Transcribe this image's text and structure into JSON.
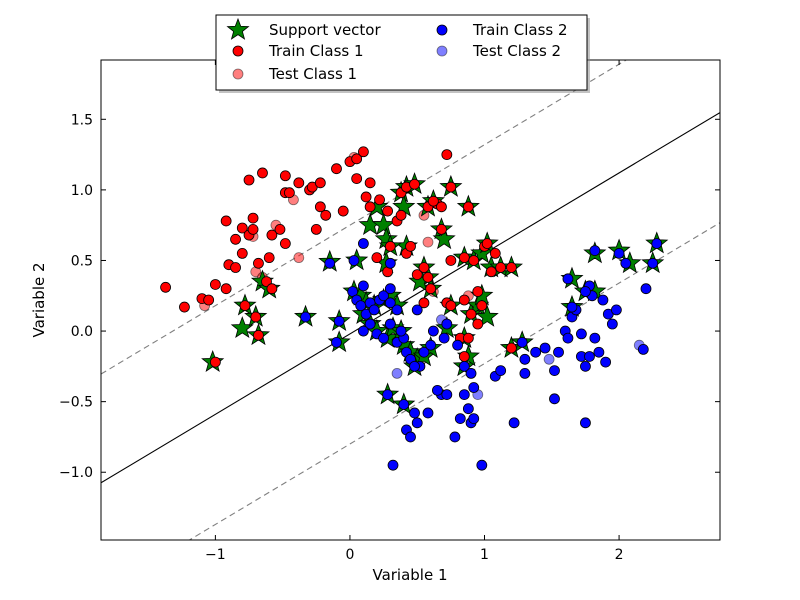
{
  "chart_data": {
    "type": "scatter",
    "xlabel": "Variable 1",
    "ylabel": "Variable 2",
    "xlim": [
      -1.85,
      2.75
    ],
    "ylim": [
      -1.48,
      1.92
    ],
    "xticks": [
      -1,
      0,
      1,
      2
    ],
    "yticks": [
      -1.0,
      -0.5,
      0.0,
      0.5,
      1.0,
      1.5
    ],
    "xtick_labels": [
      "−1",
      "0",
      "1",
      "2"
    ],
    "ytick_labels": [
      "−1.0",
      "−0.5",
      "0.0",
      "0.5",
      "1.0",
      "1.5"
    ],
    "grid": false,
    "legend_position": "top-center",
    "legend_entries": [
      {
        "key": "sv",
        "label": "Support vector"
      },
      {
        "key": "train1",
        "label": "Train Class 1"
      },
      {
        "key": "test1",
        "label": "Test Class 1"
      },
      {
        "key": "train2",
        "label": "Train Class 2"
      },
      {
        "key": "test2",
        "label": "Test Class 2"
      }
    ],
    "colors": {
      "train1": "#ff0000",
      "test1": "#ff0000",
      "train2": "#0000ff",
      "test2": "#0000ff",
      "support_vector": "#008000",
      "decision_boundary": "#000000",
      "margin": "#808080"
    },
    "decision_boundary": {
      "slope": 0.57,
      "intercept": -0.02
    },
    "margins": [
      {
        "slope": 0.57,
        "intercept": 0.75
      },
      {
        "slope": 0.57,
        "intercept": -0.8
      }
    ],
    "series": [
      {
        "name": "Support vector",
        "type": "support_vector",
        "points": [
          [
            -1.02,
            -0.22
          ],
          [
            -0.78,
            0.18
          ],
          [
            -0.8,
            0.02
          ],
          [
            -0.7,
            0.1
          ],
          [
            -0.68,
            -0.03
          ],
          [
            -0.65,
            0.35
          ],
          [
            -0.6,
            0.3
          ],
          [
            -0.33,
            0.1
          ],
          [
            -0.15,
            0.49
          ],
          [
            -0.08,
            -0.08
          ],
          [
            -0.08,
            0.07
          ],
          [
            0.05,
            0.5
          ],
          [
            0.15,
            0.75
          ],
          [
            0.2,
            0.88
          ],
          [
            0.25,
            0.75
          ],
          [
            0.27,
            0.65
          ],
          [
            0.27,
            0.48
          ],
          [
            0.38,
            0.98
          ],
          [
            0.42,
            1.02
          ],
          [
            0.48,
            1.04
          ],
          [
            0.4,
            0.88
          ],
          [
            0.42,
            0.6
          ],
          [
            0.58,
            0.88
          ],
          [
            0.62,
            0.92
          ],
          [
            0.68,
            0.72
          ],
          [
            0.7,
            0.65
          ],
          [
            0.75,
            1.02
          ],
          [
            0.88,
            0.88
          ],
          [
            0.55,
            0.45
          ],
          [
            0.58,
            0.38
          ],
          [
            0.6,
            0.3
          ],
          [
            0.75,
            0.18
          ],
          [
            0.85,
            0.52
          ],
          [
            0.92,
            0.5
          ],
          [
            0.98,
            0.55
          ],
          [
            1.02,
            0.62
          ],
          [
            1.05,
            0.45
          ],
          [
            1.12,
            0.45
          ],
          [
            1.2,
            0.45
          ],
          [
            0.03,
            0.28
          ],
          [
            0.08,
            0.25
          ],
          [
            0.12,
            0.2
          ],
          [
            0.18,
            0.18
          ],
          [
            0.25,
            0.22
          ],
          [
            0.3,
            0.25
          ],
          [
            0.35,
            0.18
          ],
          [
            0.1,
            0.12
          ],
          [
            0.15,
            0.05
          ],
          [
            0.2,
            0.0
          ],
          [
            0.28,
            -0.05
          ],
          [
            0.32,
            0.02
          ],
          [
            0.38,
            0.0
          ],
          [
            0.4,
            -0.1
          ],
          [
            0.45,
            -0.15
          ],
          [
            0.5,
            -0.2
          ],
          [
            0.55,
            -0.18
          ],
          [
            0.6,
            -0.12
          ],
          [
            0.85,
            -0.25
          ],
          [
            0.88,
            -0.18
          ],
          [
            0.85,
            -0.05
          ],
          [
            0.9,
            0.12
          ],
          [
            0.95,
            0.18
          ],
          [
            0.98,
            0.25
          ],
          [
            1.02,
            0.1
          ],
          [
            0.72,
            0.02
          ],
          [
            0.28,
            -0.45
          ],
          [
            0.4,
            -0.52
          ],
          [
            0.48,
            -0.25
          ],
          [
            1.2,
            -0.12
          ],
          [
            1.28,
            -0.08
          ],
          [
            1.65,
            0.37
          ],
          [
            1.65,
            0.17
          ],
          [
            1.75,
            0.28
          ],
          [
            1.82,
            0.55
          ],
          [
            1.82,
            0.28
          ],
          [
            2.0,
            0.57
          ],
          [
            2.08,
            0.48
          ],
          [
            2.25,
            0.48
          ],
          [
            2.28,
            0.62
          ],
          [
            0.3,
            0.6
          ],
          [
            0.52,
            0.35
          ]
        ]
      },
      {
        "name": "Train Class 1",
        "type": "train1",
        "points": [
          [
            -1.37,
            0.31
          ],
          [
            -1.23,
            0.17
          ],
          [
            -1.1,
            0.23
          ],
          [
            -1.05,
            0.22
          ],
          [
            -1.0,
            0.33
          ],
          [
            -0.92,
            0.3
          ],
          [
            -0.9,
            0.47
          ],
          [
            -0.92,
            0.78
          ],
          [
            -0.85,
            0.65
          ],
          [
            -0.85,
            0.45
          ],
          [
            -0.8,
            0.73
          ],
          [
            -0.8,
            0.55
          ],
          [
            -0.75,
            0.68
          ],
          [
            -0.72,
            0.72
          ],
          [
            -0.72,
            0.8
          ],
          [
            -0.75,
            1.07
          ],
          [
            -0.65,
            1.12
          ],
          [
            -0.68,
            0.48
          ],
          [
            -0.6,
            0.52
          ],
          [
            -0.58,
            0.68
          ],
          [
            -0.52,
            0.72
          ],
          [
            -0.48,
            0.62
          ],
          [
            -0.48,
            0.98
          ],
          [
            -0.45,
            0.98
          ],
          [
            -0.48,
            1.1
          ],
          [
            -0.38,
            1.05
          ],
          [
            -0.3,
            1.0
          ],
          [
            -0.28,
            1.02
          ],
          [
            -0.22,
            0.88
          ],
          [
            -0.18,
            0.82
          ],
          [
            -0.22,
            1.05
          ],
          [
            -0.1,
            1.15
          ],
          [
            -0.05,
            0.85
          ],
          [
            -0.25,
            0.72
          ],
          [
            0.0,
            1.2
          ],
          [
            0.05,
            1.22
          ],
          [
            0.1,
            1.27
          ],
          [
            0.05,
            1.08
          ],
          [
            0.15,
            1.05
          ],
          [
            0.12,
            0.95
          ],
          [
            0.22,
            0.93
          ],
          [
            0.28,
            0.85
          ],
          [
            0.35,
            0.78
          ],
          [
            0.38,
            0.82
          ],
          [
            0.42,
            0.55
          ],
          [
            0.28,
            0.42
          ],
          [
            0.2,
            0.52
          ],
          [
            0.72,
            1.25
          ],
          [
            0.65,
            0.9
          ],
          [
            0.68,
            0.88
          ],
          [
            0.5,
            0.4
          ],
          [
            0.55,
            0.2
          ],
          [
            0.72,
            0.2
          ],
          [
            0.75,
            0.5
          ],
          [
            0.85,
            0.22
          ],
          [
            0.9,
            0.12
          ],
          [
            0.95,
            0.28
          ],
          [
            0.95,
            0.05
          ],
          [
            1.0,
            0.6
          ],
          [
            1.05,
            0.42
          ],
          [
            1.08,
            0.55
          ],
          [
            1.2,
            -0.12
          ],
          [
            0.82,
            -0.05
          ],
          [
            0.88,
            -0.05
          ],
          [
            0.85,
            -0.18
          ],
          [
            -1.0,
            -0.22
          ],
          [
            -0.78,
            0.18
          ],
          [
            -0.7,
            0.1
          ],
          [
            -0.68,
            -0.03
          ],
          [
            -0.62,
            0.35
          ],
          [
            -0.58,
            0.3
          ],
          [
            0.15,
            0.88
          ],
          [
            0.38,
            0.98
          ],
          [
            0.42,
            1.02
          ],
          [
            0.48,
            1.04
          ],
          [
            0.45,
            0.6
          ],
          [
            0.58,
            0.88
          ],
          [
            0.62,
            0.92
          ],
          [
            0.68,
            0.72
          ],
          [
            0.75,
            1.02
          ],
          [
            0.88,
            0.88
          ],
          [
            0.55,
            0.45
          ],
          [
            0.58,
            0.38
          ],
          [
            0.6,
            0.3
          ],
          [
            0.75,
            0.18
          ],
          [
            0.85,
            0.52
          ],
          [
            0.92,
            0.5
          ],
          [
            1.02,
            0.62
          ],
          [
            1.12,
            0.45
          ],
          [
            1.2,
            0.45
          ],
          [
            0.3,
            0.6
          ],
          [
            0.98,
            0.18
          ]
        ]
      },
      {
        "name": "Test Class 1",
        "type": "test1",
        "points": [
          [
            -1.08,
            0.18
          ],
          [
            -0.72,
            0.67
          ],
          [
            -0.7,
            0.42
          ],
          [
            -0.65,
            0.38
          ],
          [
            -0.55,
            0.75
          ],
          [
            -0.38,
            0.52
          ],
          [
            -0.42,
            0.93
          ],
          [
            0.03,
            1.23
          ],
          [
            0.55,
            0.82
          ],
          [
            0.58,
            0.63
          ],
          [
            0.88,
            0.25
          ],
          [
            0.62,
            0.28
          ]
        ]
      },
      {
        "name": "Train Class 2",
        "type": "train2",
        "points": [
          [
            -0.15,
            0.48
          ],
          [
            -0.1,
            -0.08
          ],
          [
            -0.08,
            0.07
          ],
          [
            0.03,
            0.5
          ],
          [
            0.02,
            0.28
          ],
          [
            0.05,
            0.22
          ],
          [
            0.08,
            0.18
          ],
          [
            0.1,
            0.32
          ],
          [
            0.12,
            0.12
          ],
          [
            0.15,
            0.2
          ],
          [
            0.18,
            0.15
          ],
          [
            0.22,
            0.22
          ],
          [
            0.25,
            0.25
          ],
          [
            0.3,
            0.3
          ],
          [
            0.3,
            0.2
          ],
          [
            0.35,
            0.15
          ],
          [
            0.15,
            0.05
          ],
          [
            0.1,
            0.0
          ],
          [
            0.2,
            -0.02
          ],
          [
            0.25,
            -0.05
          ],
          [
            0.3,
            0.05
          ],
          [
            0.35,
            -0.08
          ],
          [
            0.4,
            -0.05
          ],
          [
            0.42,
            -0.15
          ],
          [
            0.45,
            -0.2
          ],
          [
            0.52,
            -0.25
          ],
          [
            0.55,
            -0.15
          ],
          [
            0.6,
            -0.1
          ],
          [
            0.62,
            0.0
          ],
          [
            0.7,
            -0.05
          ],
          [
            0.72,
            0.05
          ],
          [
            0.8,
            -0.1
          ],
          [
            0.85,
            -0.25
          ],
          [
            0.9,
            -0.3
          ],
          [
            0.92,
            -0.4
          ],
          [
            0.85,
            -0.45
          ],
          [
            0.88,
            -0.55
          ],
          [
            0.82,
            -0.62
          ],
          [
            0.9,
            -0.65
          ],
          [
            0.78,
            -0.75
          ],
          [
            0.98,
            -0.95
          ],
          [
            0.32,
            -0.95
          ],
          [
            0.42,
            -0.7
          ],
          [
            0.45,
            -0.75
          ],
          [
            0.48,
            -0.58
          ],
          [
            0.5,
            -0.65
          ],
          [
            0.58,
            -0.58
          ],
          [
            0.68,
            -0.45
          ],
          [
            0.72,
            -0.45
          ],
          [
            0.92,
            -0.62
          ],
          [
            1.22,
            -0.65
          ],
          [
            1.08,
            -0.32
          ],
          [
            1.12,
            -0.28
          ],
          [
            1.28,
            -0.08
          ],
          [
            1.3,
            -0.2
          ],
          [
            1.3,
            -0.3
          ],
          [
            1.38,
            -0.15
          ],
          [
            1.45,
            -0.12
          ],
          [
            1.52,
            -0.28
          ],
          [
            1.52,
            -0.48
          ],
          [
            1.55,
            -0.15
          ],
          [
            1.6,
            0.0
          ],
          [
            1.62,
            -0.05
          ],
          [
            1.65,
            0.1
          ],
          [
            1.68,
            0.15
          ],
          [
            1.72,
            -0.18
          ],
          [
            1.72,
            -0.02
          ],
          [
            1.75,
            -0.25
          ],
          [
            1.78,
            -0.18
          ],
          [
            1.78,
            0.32
          ],
          [
            1.8,
            0.25
          ],
          [
            1.82,
            -0.05
          ],
          [
            1.85,
            -0.15
          ],
          [
            1.88,
            0.22
          ],
          [
            1.9,
            -0.22
          ],
          [
            1.92,
            0.12
          ],
          [
            1.95,
            0.05
          ],
          [
            1.98,
            0.15
          ],
          [
            2.0,
            0.55
          ],
          [
            2.05,
            0.48
          ],
          [
            2.2,
            0.3
          ],
          [
            2.18,
            -0.13
          ],
          [
            1.75,
            -0.65
          ],
          [
            0.38,
            0.0
          ],
          [
            0.48,
            -0.25
          ],
          [
            0.65,
            -0.42
          ],
          [
            1.62,
            0.37
          ],
          [
            1.65,
            0.17
          ],
          [
            1.75,
            0.28
          ],
          [
            1.82,
            0.57
          ],
          [
            2.25,
            0.48
          ],
          [
            2.28,
            0.62
          ],
          [
            0.28,
            -0.45
          ],
          [
            0.4,
            -0.52
          ],
          [
            0.5,
            0.15
          ],
          [
            0.1,
            0.62
          ],
          [
            0.3,
            0.48
          ],
          [
            -0.33,
            0.1
          ]
        ]
      },
      {
        "name": "Test Class 2",
        "type": "test2",
        "points": [
          [
            0.35,
            -0.3
          ],
          [
            0.68,
            0.08
          ],
          [
            0.95,
            -0.45
          ],
          [
            1.48,
            -0.2
          ],
          [
            2.15,
            -0.1
          ]
        ]
      }
    ]
  }
}
